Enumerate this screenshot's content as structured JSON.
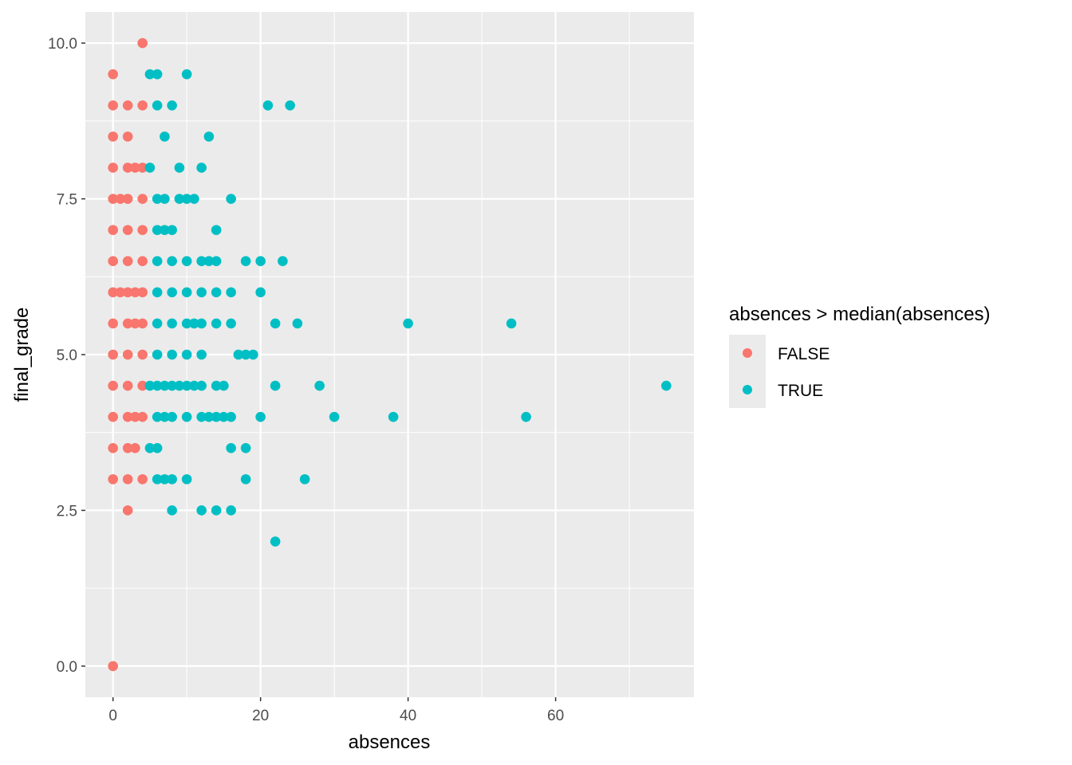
{
  "chart_data": {
    "type": "scatter",
    "xlabel": "absences",
    "ylabel": "final_grade",
    "xlim": [
      -3.75,
      78.75
    ],
    "ylim": [
      -0.5,
      10.5
    ],
    "xticks": [
      "0",
      "20",
      "40",
      "60"
    ],
    "xtick_values": [
      0,
      20,
      40,
      60
    ],
    "yticks": [
      "0.0",
      "2.5",
      "5.0",
      "7.5",
      "10.0"
    ],
    "ytick_values": [
      0,
      2.5,
      5,
      7.5,
      10
    ],
    "grid": true,
    "legend": {
      "title": "absences > median(absences)",
      "placement": "right",
      "entries": [
        {
          "label": "FALSE",
          "color": "#F8766D"
        },
        {
          "label": "TRUE",
          "color": "#00BFC4"
        }
      ]
    },
    "median_absences": 4,
    "rows": {
      "10": [
        4
      ],
      "9.5": [
        0,
        5,
        6,
        10
      ],
      "9": [
        0,
        2,
        4,
        6,
        8,
        21,
        24
      ],
      "8.5": [
        0,
        2,
        7,
        13
      ],
      "8": [
        0,
        2,
        3,
        4,
        5,
        9,
        12
      ],
      "7.5": [
        0,
        1,
        2,
        4,
        6,
        7,
        9,
        10,
        11,
        16
      ],
      "7": [
        0,
        2,
        4,
        6,
        7,
        8,
        14
      ],
      "6.5": [
        0,
        2,
        4,
        6,
        8,
        10,
        12,
        13,
        14,
        18,
        20,
        23
      ],
      "6": [
        0,
        1,
        2,
        3,
        4,
        6,
        8,
        10,
        12,
        14,
        16,
        20
      ],
      "5.5": [
        0,
        2,
        3,
        4,
        6,
        8,
        10,
        11,
        12,
        14,
        16,
        22,
        25,
        40,
        54
      ],
      "5": [
        0,
        2,
        4,
        6,
        8,
        10,
        12,
        17,
        18,
        19
      ],
      "4.5": [
        0,
        2,
        4,
        5,
        6,
        7,
        8,
        9,
        10,
        11,
        12,
        14,
        15,
        22,
        28,
        75
      ],
      "4": [
        0,
        2,
        3,
        4,
        6,
        7,
        8,
        10,
        12,
        13,
        14,
        15,
        16,
        20,
        30,
        38,
        56
      ],
      "3.5": [
        0,
        2,
        3,
        5,
        6,
        16,
        18
      ],
      "3": [
        0,
        2,
        4,
        6,
        7,
        8,
        10,
        18,
        26
      ],
      "2.5": [
        2,
        8,
        12,
        14,
        16
      ],
      "2": [
        22
      ],
      "0": [
        0
      ]
    }
  }
}
